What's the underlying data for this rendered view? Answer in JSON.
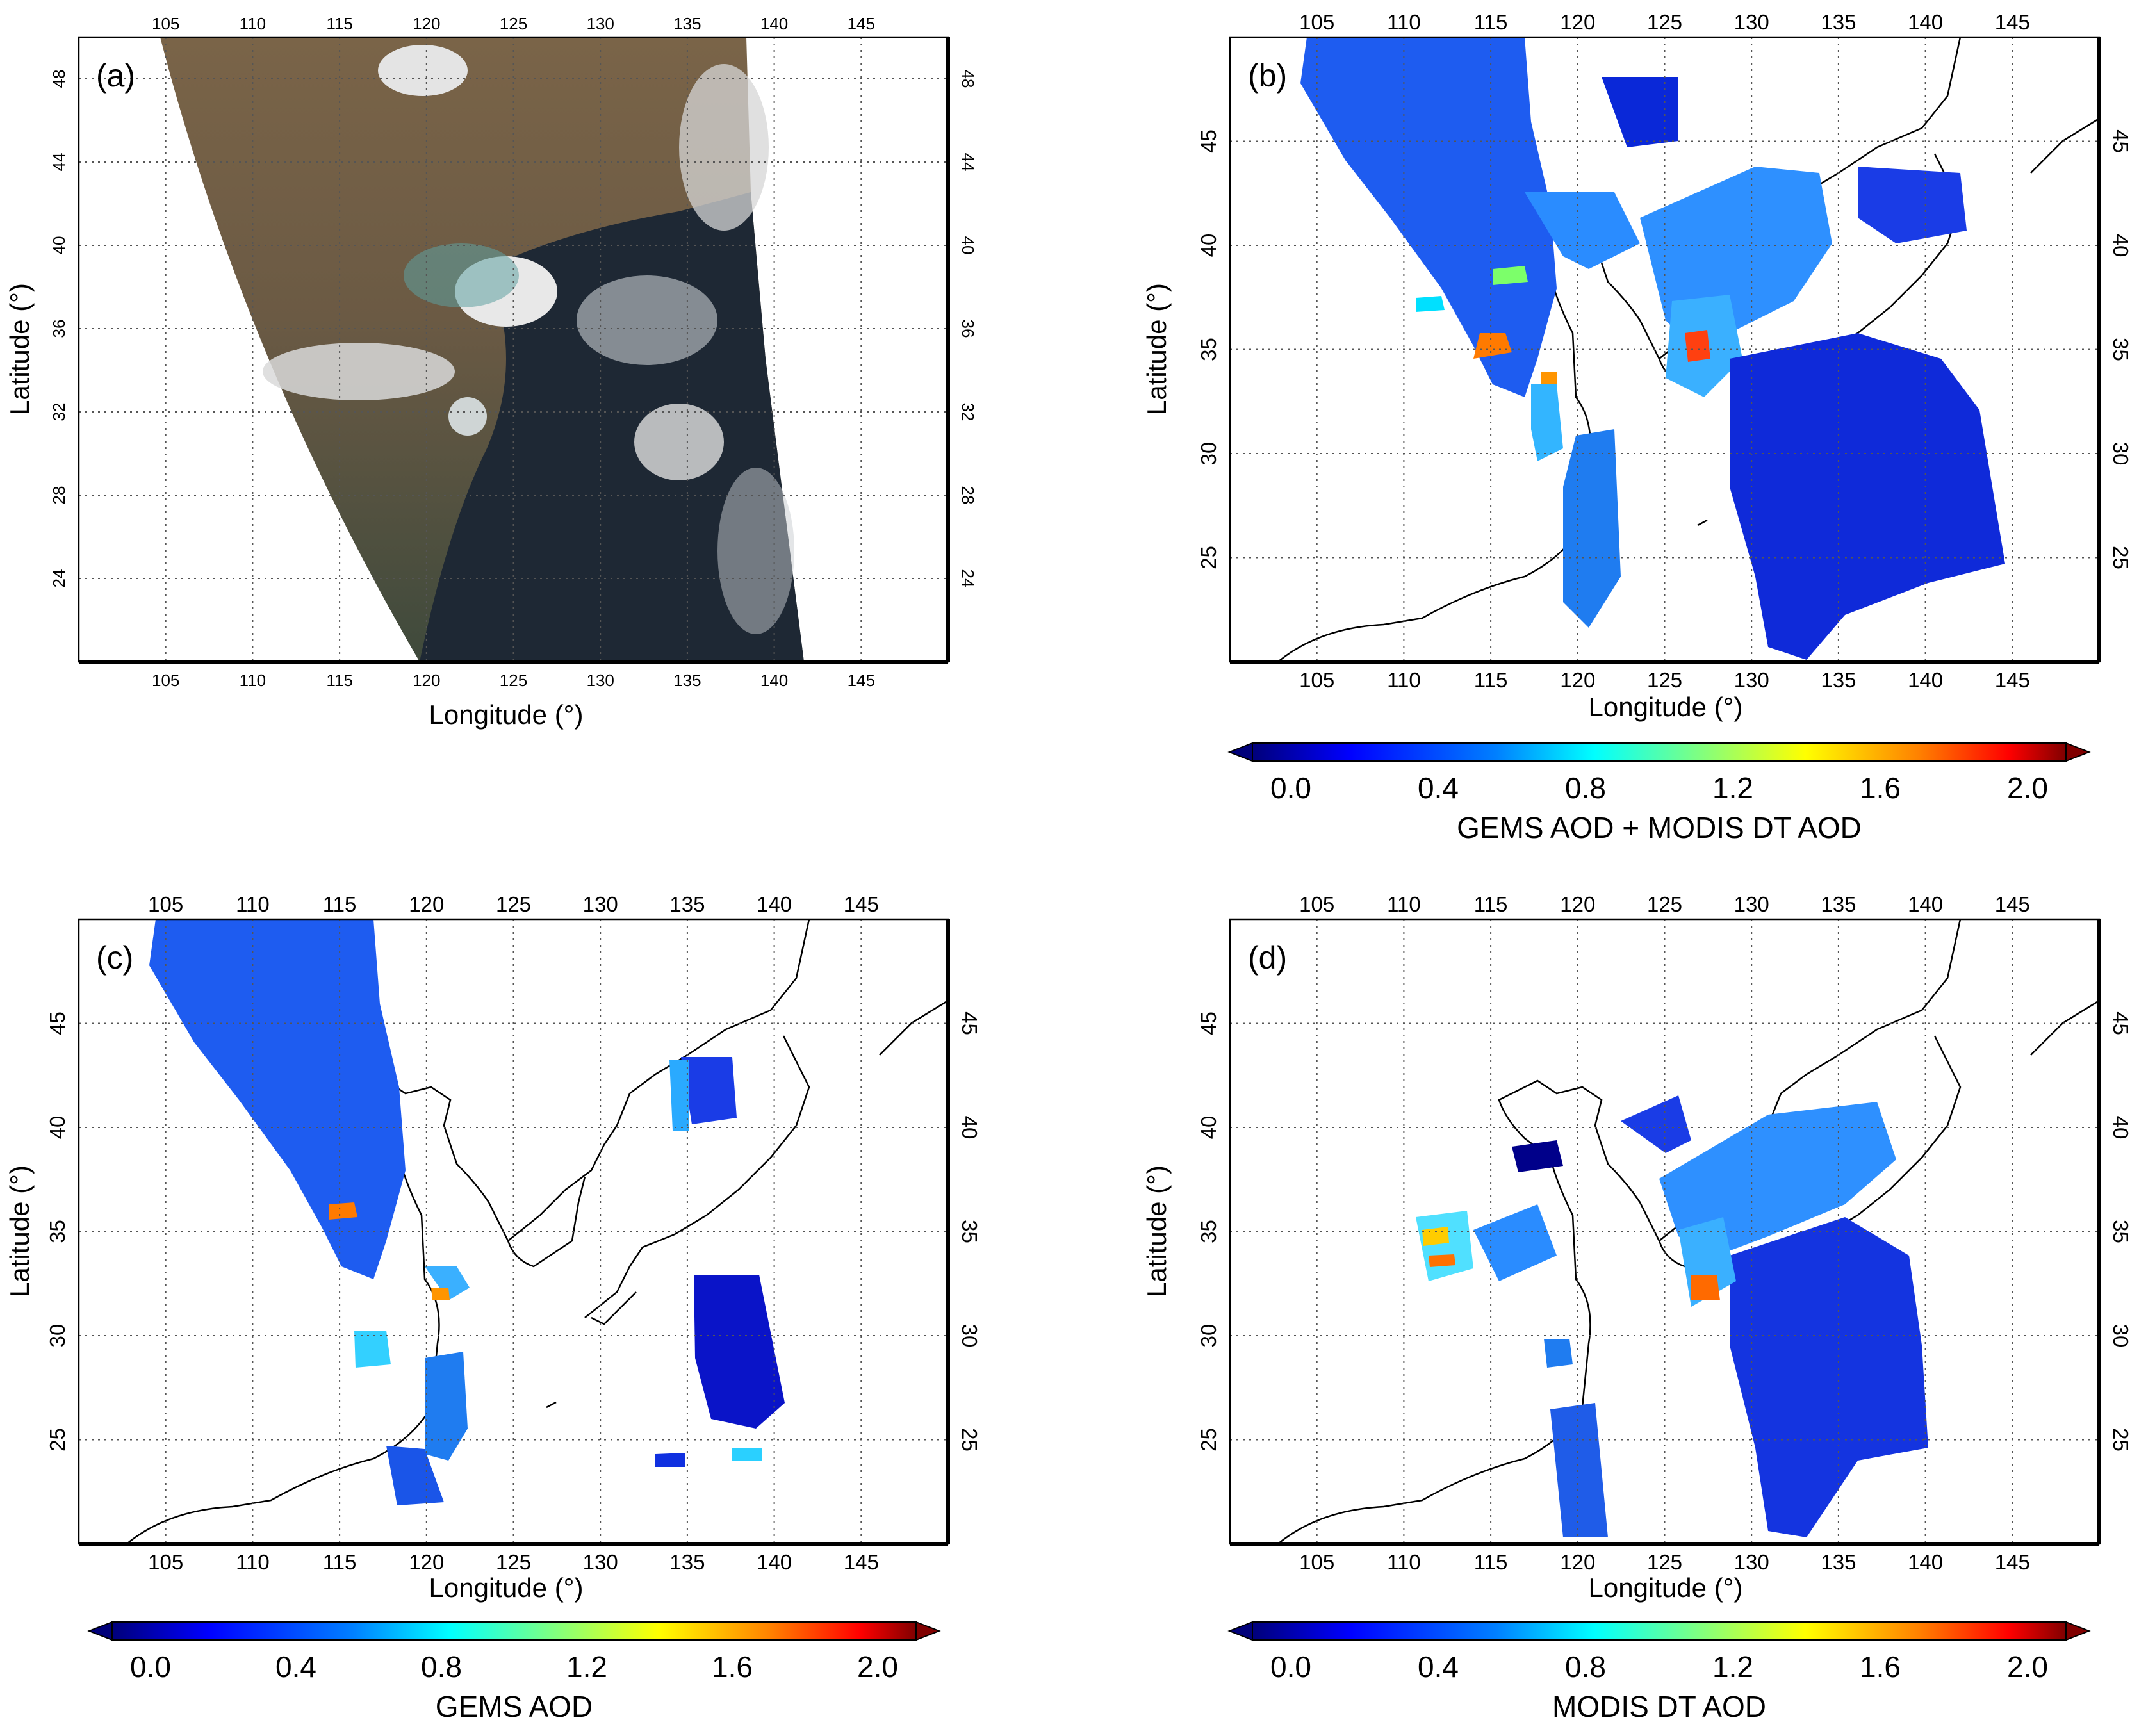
{
  "figure": {
    "x_axis_label": "Longitude (°)",
    "y_axis_label": "Latitude (°)",
    "longitudes": [
      105,
      110,
      115,
      120,
      125,
      130,
      135,
      140,
      145
    ],
    "lat_ticks_a": [
      24,
      28,
      32,
      36,
      40,
      44,
      48
    ],
    "lat_ticks_bcd": [
      25,
      30,
      35,
      40,
      45
    ],
    "lon_range": [
      100,
      150
    ],
    "lat_range_a": [
      20,
      50
    ],
    "lat_range_bcd": [
      20,
      50
    ]
  },
  "panels": [
    {
      "id": "a",
      "label": "(a)",
      "kind": "true-color-image"
    },
    {
      "id": "b",
      "label": "(b)",
      "kind": "aod-map",
      "colorbar_title": "GEMS AOD + MODIS DT AOD"
    },
    {
      "id": "c",
      "label": "(c)",
      "kind": "aod-map",
      "colorbar_title": "GEMS AOD"
    },
    {
      "id": "d",
      "label": "(d)",
      "kind": "aod-map",
      "colorbar_title": "MODIS DT AOD"
    }
  ],
  "colorbar": {
    "ticks": [
      "0.0",
      "0.4",
      "0.8",
      "1.2",
      "1.6",
      "2.0"
    ],
    "range": [
      0.0,
      2.0
    ],
    "colors": [
      "#00007a",
      "#0000ff",
      "#0080ff",
      "#00ffff",
      "#80ff80",
      "#ffff00",
      "#ff8000",
      "#ff0000",
      "#800000"
    ]
  },
  "colors": {
    "land_a": "#6b5a44",
    "ocean_a": "#1c2530",
    "coastline": "#000000",
    "grid": "#555555"
  }
}
